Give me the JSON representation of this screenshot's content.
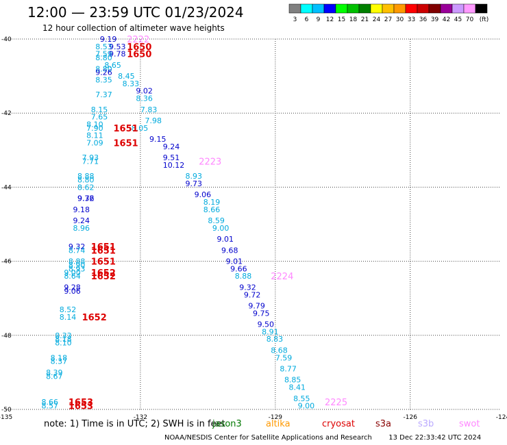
{
  "header": {
    "title": "12:00 — 23:59 UTC 01/23/2024",
    "subtitle": "12 hour collection of altimeter wave heights"
  },
  "legend_scale": {
    "labels": [
      "3",
      "6",
      "9",
      "12",
      "15",
      "18",
      "21",
      "24",
      "27",
      "30",
      "33",
      "36",
      "39",
      "42",
      "45",
      "70",
      "(ft)"
    ],
    "colors": [
      "#808080",
      "#00ffff",
      "#00bfff",
      "#0000ff",
      "#00ff00",
      "#00c000",
      "#008000",
      "#ffff00",
      "#ffc000",
      "#ff9900",
      "#ff0000",
      "#cc0000",
      "#800000",
      "#990099",
      "#cc99ff",
      "#ff99ff",
      "#000000"
    ]
  },
  "chart_data": {
    "type": "scatter",
    "xlim": [
      -135,
      -124
    ],
    "ylim": [
      -50,
      -40
    ],
    "x_ticks": [
      "-135",
      "-132",
      "-129",
      "-126",
      "-123",
      "-124"
    ],
    "y_ticks": [
      "-40",
      "-42",
      "-44",
      "-46",
      "-48",
      "-50"
    ],
    "grid": true,
    "points": [
      {
        "x": -132.9,
        "y": -40.0,
        "label": "9.19",
        "color": "#0000cc"
      },
      {
        "x": -133.0,
        "y": -40.2,
        "label": "8.53",
        "color": "#00aadd"
      },
      {
        "x": -132.7,
        "y": -40.2,
        "label": "9.53",
        "color": "#0000cc"
      },
      {
        "x": -133.0,
        "y": -40.4,
        "label": "7.59",
        "color": "#00aadd"
      },
      {
        "x": -133.0,
        "y": -40.5,
        "label": "8.80",
        "color": "#00aadd"
      },
      {
        "x": -132.7,
        "y": -40.4,
        "label": "9.78",
        "color": "#0000cc"
      },
      {
        "x": -132.8,
        "y": -40.7,
        "label": "8.65",
        "color": "#00aadd"
      },
      {
        "x": -133.0,
        "y": -40.8,
        "label": "8.80",
        "color": "#00aadd"
      },
      {
        "x": -133.0,
        "y": -40.9,
        "label": "9.26",
        "color": "#0000cc"
      },
      {
        "x": -132.5,
        "y": -41.0,
        "label": "8.45",
        "color": "#00aadd"
      },
      {
        "x": -133.0,
        "y": -41.1,
        "label": "8.35",
        "color": "#00aadd"
      },
      {
        "x": -132.4,
        "y": -41.2,
        "label": "8.33",
        "color": "#00aadd"
      },
      {
        "x": -132.1,
        "y": -41.4,
        "label": "9.02",
        "color": "#0000cc"
      },
      {
        "x": -133.0,
        "y": -41.5,
        "label": "7.37",
        "color": "#00aadd"
      },
      {
        "x": -132.1,
        "y": -41.6,
        "label": "8.36",
        "color": "#00aadd"
      },
      {
        "x": -133.1,
        "y": -41.9,
        "label": "8.15",
        "color": "#00aadd"
      },
      {
        "x": -132.0,
        "y": -41.9,
        "label": "7.83",
        "color": "#00aadd"
      },
      {
        "x": -133.1,
        "y": -42.1,
        "label": "7.65",
        "color": "#00aadd"
      },
      {
        "x": -131.9,
        "y": -42.2,
        "label": "7.98",
        "color": "#00aadd"
      },
      {
        "x": -133.2,
        "y": -42.3,
        "label": "8.10",
        "color": "#00aadd"
      },
      {
        "x": -133.2,
        "y": -42.4,
        "label": "7.90",
        "color": "#00aadd"
      },
      {
        "x": -132.2,
        "y": -42.4,
        "label": "8.05",
        "color": "#00aadd"
      },
      {
        "x": -133.2,
        "y": -42.6,
        "label": "8.11",
        "color": "#00aadd"
      },
      {
        "x": -131.8,
        "y": -42.7,
        "label": "9.15",
        "color": "#0000cc"
      },
      {
        "x": -133.2,
        "y": -42.8,
        "label": "7.09",
        "color": "#00aadd"
      },
      {
        "x": -131.5,
        "y": -42.9,
        "label": "9.24",
        "color": "#0000cc"
      },
      {
        "x": -133.3,
        "y": -43.2,
        "label": "7.93",
        "color": "#00aadd"
      },
      {
        "x": -131.5,
        "y": -43.2,
        "label": "9.51",
        "color": "#0000cc"
      },
      {
        "x": -133.3,
        "y": -43.3,
        "label": "7.71",
        "color": "#00aadd"
      },
      {
        "x": -131.5,
        "y": -43.4,
        "label": "10.12",
        "color": "#0000cc"
      },
      {
        "x": -133.4,
        "y": -43.7,
        "label": "8.88",
        "color": "#00aadd"
      },
      {
        "x": -131.0,
        "y": -43.7,
        "label": "8.93",
        "color": "#00aadd"
      },
      {
        "x": -133.4,
        "y": -43.8,
        "label": "8.80",
        "color": "#00aadd"
      },
      {
        "x": -131.0,
        "y": -43.9,
        "label": "9.73",
        "color": "#0000cc"
      },
      {
        "x": -133.4,
        "y": -44.0,
        "label": "8.62",
        "color": "#00aadd"
      },
      {
        "x": -130.8,
        "y": -44.2,
        "label": "9.06",
        "color": "#0000cc"
      },
      {
        "x": -133.4,
        "y": -44.3,
        "label": "9.76",
        "color": "#0000cc"
      },
      {
        "x": -133.4,
        "y": -44.3,
        "label": "9.32",
        "color": "#0000cc"
      },
      {
        "x": -130.6,
        "y": -44.4,
        "label": "8.19",
        "color": "#00aadd"
      },
      {
        "x": -133.5,
        "y": -44.6,
        "label": "9.18",
        "color": "#0000cc"
      },
      {
        "x": -130.6,
        "y": -44.6,
        "label": "8.66",
        "color": "#00aadd"
      },
      {
        "x": -130.5,
        "y": -44.9,
        "label": "8.59",
        "color": "#00aadd"
      },
      {
        "x": -133.5,
        "y": -44.9,
        "label": "9.24",
        "color": "#0000cc"
      },
      {
        "x": -133.5,
        "y": -45.1,
        "label": "8.96",
        "color": "#00aadd"
      },
      {
        "x": -130.4,
        "y": -45.1,
        "label": "9.00",
        "color": "#00aadd"
      },
      {
        "x": -130.3,
        "y": -45.4,
        "label": "9.01",
        "color": "#0000cc"
      },
      {
        "x": -133.6,
        "y": -45.6,
        "label": "9.32",
        "color": "#0000cc"
      },
      {
        "x": -133.6,
        "y": -45.7,
        "label": "8.74",
        "color": "#00aadd"
      },
      {
        "x": -130.2,
        "y": -45.7,
        "label": "9.68",
        "color": "#0000cc"
      },
      {
        "x": -130.1,
        "y": -46.0,
        "label": "9.01",
        "color": "#0000cc"
      },
      {
        "x": -133.6,
        "y": -46.0,
        "label": "8.88",
        "color": "#00aadd"
      },
      {
        "x": -133.6,
        "y": -46.1,
        "label": "8.90",
        "color": "#00aadd"
      },
      {
        "x": -133.6,
        "y": -46.2,
        "label": "8.93",
        "color": "#00aadd"
      },
      {
        "x": -130.0,
        "y": -46.2,
        "label": "9.66",
        "color": "#0000cc"
      },
      {
        "x": -133.7,
        "y": -46.3,
        "label": "9.00",
        "color": "#00aadd"
      },
      {
        "x": -133.7,
        "y": -46.4,
        "label": "8.64",
        "color": "#00aadd"
      },
      {
        "x": -129.9,
        "y": -46.4,
        "label": "8.88",
        "color": "#00aadd"
      },
      {
        "x": -133.7,
        "y": -46.7,
        "label": "9.28",
        "color": "#0000cc"
      },
      {
        "x": -129.8,
        "y": -46.7,
        "label": "9.32",
        "color": "#0000cc"
      },
      {
        "x": -133.7,
        "y": -46.8,
        "label": "9.06",
        "color": "#0000cc"
      },
      {
        "x": -129.7,
        "y": -46.9,
        "label": "9.72",
        "color": "#0000cc"
      },
      {
        "x": -129.6,
        "y": -47.2,
        "label": "9.79",
        "color": "#0000cc"
      },
      {
        "x": -133.8,
        "y": -47.3,
        "label": "8.52",
        "color": "#00aadd"
      },
      {
        "x": -129.5,
        "y": -47.4,
        "label": "9.75",
        "color": "#0000cc"
      },
      {
        "x": -133.8,
        "y": -47.5,
        "label": "8.14",
        "color": "#00aadd"
      },
      {
        "x": -129.4,
        "y": -47.7,
        "label": "9.50",
        "color": "#0000cc"
      },
      {
        "x": -129.3,
        "y": -47.9,
        "label": "8.91",
        "color": "#00aadd"
      },
      {
        "x": -133.9,
        "y": -48.0,
        "label": "8.33",
        "color": "#00aadd"
      },
      {
        "x": -133.9,
        "y": -48.1,
        "label": "8.18",
        "color": "#00aadd"
      },
      {
        "x": -129.2,
        "y": -48.1,
        "label": "8.83",
        "color": "#00aadd"
      },
      {
        "x": -133.9,
        "y": -48.2,
        "label": "8.10",
        "color": "#00aadd"
      },
      {
        "x": -129.1,
        "y": -48.4,
        "label": "8.68",
        "color": "#00aadd"
      },
      {
        "x": -134.0,
        "y": -48.6,
        "label": "8.18",
        "color": "#00aadd"
      },
      {
        "x": -134.0,
        "y": -48.7,
        "label": "8.37",
        "color": "#00aadd"
      },
      {
        "x": -129.0,
        "y": -48.6,
        "label": "7.59",
        "color": "#00aadd"
      },
      {
        "x": -128.9,
        "y": -48.9,
        "label": "8.77",
        "color": "#00aadd"
      },
      {
        "x": -134.1,
        "y": -49.0,
        "label": "8.39",
        "color": "#00aadd"
      },
      {
        "x": -134.1,
        "y": -49.1,
        "label": "8.67",
        "color": "#00aadd"
      },
      {
        "x": -128.8,
        "y": -49.2,
        "label": "8.85",
        "color": "#00aadd"
      },
      {
        "x": -128.7,
        "y": -49.4,
        "label": "8.41",
        "color": "#00aadd"
      },
      {
        "x": -128.6,
        "y": -49.7,
        "label": "8.55",
        "color": "#00aadd"
      },
      {
        "x": -134.2,
        "y": -49.8,
        "label": "8.66",
        "color": "#00aadd"
      },
      {
        "x": -134.2,
        "y": -49.9,
        "label": "8.57",
        "color": "#00aadd"
      },
      {
        "x": -128.5,
        "y": -49.9,
        "label": "9.00",
        "color": "#00aadd"
      }
    ],
    "time_labels": [
      {
        "x": -132.3,
        "y": -40.0,
        "label": "2222",
        "color": "#ff88ff"
      },
      {
        "x": -132.3,
        "y": -40.2,
        "label": "1650",
        "color": "#dd0000"
      },
      {
        "x": -132.3,
        "y": -40.4,
        "label": "1650",
        "color": "#dd0000"
      },
      {
        "x": -132.6,
        "y": -42.4,
        "label": "1651",
        "color": "#dd0000"
      },
      {
        "x": -132.6,
        "y": -42.8,
        "label": "1651",
        "color": "#dd0000"
      },
      {
        "x": -130.7,
        "y": -43.3,
        "label": "2223",
        "color": "#ff88ff"
      },
      {
        "x": -133.1,
        "y": -45.6,
        "label": "1651",
        "color": "#dd0000"
      },
      {
        "x": -133.1,
        "y": -45.7,
        "label": "1651",
        "color": "#dd0000"
      },
      {
        "x": -133.1,
        "y": -46.0,
        "label": "1651",
        "color": "#dd0000"
      },
      {
        "x": -133.1,
        "y": -46.3,
        "label": "1652",
        "color": "#dd0000"
      },
      {
        "x": -133.1,
        "y": -46.4,
        "label": "1652",
        "color": "#dd0000"
      },
      {
        "x": -129.1,
        "y": -46.4,
        "label": "2224",
        "color": "#ff88ff"
      },
      {
        "x": -133.3,
        "y": -47.5,
        "label": "1652",
        "color": "#dd0000"
      },
      {
        "x": -133.6,
        "y": -49.8,
        "label": "1653",
        "color": "#dd0000"
      },
      {
        "x": -133.6,
        "y": -49.9,
        "label": "1653",
        "color": "#dd0000"
      },
      {
        "x": -127.9,
        "y": -49.8,
        "label": "2225",
        "color": "#ff88ff"
      }
    ]
  },
  "footer": {
    "note": "note:  1) Time is in UTC; 2) SWH is in feet",
    "satellites": [
      {
        "name": "jason3",
        "color": "#007700"
      },
      {
        "name": "altika",
        "color": "#ff9900"
      },
      {
        "name": "cryosat",
        "color": "#dd0000"
      },
      {
        "name": "s3a",
        "color": "#880000"
      },
      {
        "name": "s3b",
        "color": "#bbaaff"
      },
      {
        "name": "swot",
        "color": "#ff88ff"
      }
    ],
    "credit": "NOAA/NESDIS Center for Satellite Applications and Research",
    "timestamp": "13 Dec 22:33:42 UTC 2024"
  }
}
